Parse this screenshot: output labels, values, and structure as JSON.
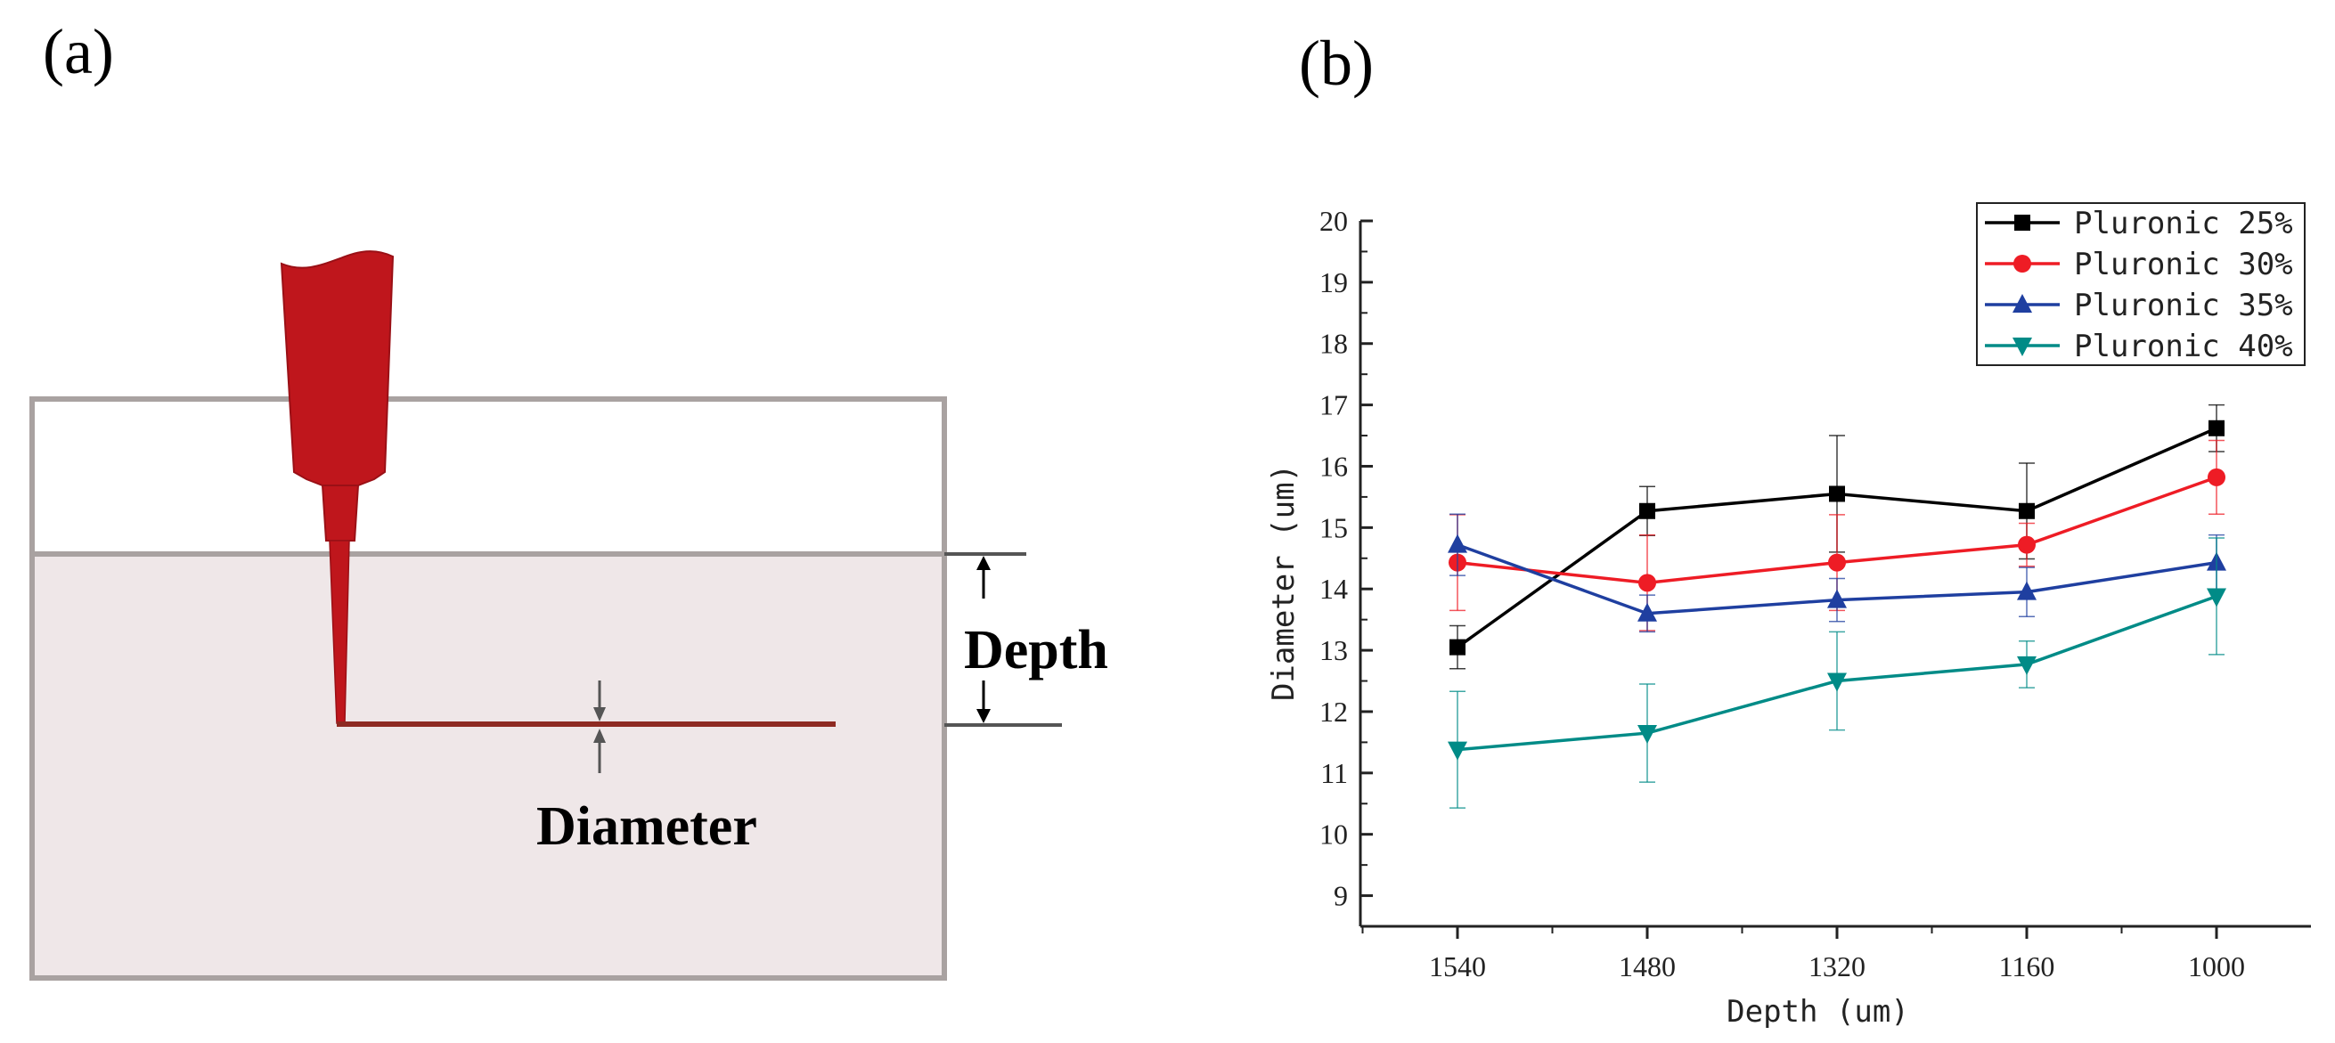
{
  "panels": {
    "a_label": "(a)",
    "b_label": "(b)"
  },
  "diagram": {
    "depth_label": "Depth",
    "diameter_label": "Diameter",
    "colors": {
      "nozzle": "#bf161c",
      "filament": "#8e2a22",
      "bath": "#efe7e8",
      "bath_border": "#a9a2a1",
      "dimension_line": "#555555"
    }
  },
  "chart_data": {
    "type": "line",
    "title": "",
    "xlabel": "Depth (um)",
    "ylabel": "Diameter (um)",
    "categories": [
      "1540",
      "1480",
      "1320",
      "1160",
      "1000"
    ],
    "ylim": [
      8.5,
      20
    ],
    "yticks": [
      9,
      10,
      11,
      12,
      13,
      14,
      15,
      16,
      17,
      18,
      19,
      20
    ],
    "legend_position": "top-right",
    "series": [
      {
        "name": "Pluronic 25%",
        "color": "#000000",
        "marker": "square",
        "values": [
          13.05,
          15.27,
          15.55,
          15.27,
          16.62
        ],
        "errors": [
          0.35,
          0.4,
          0.95,
          0.78,
          0.38
        ]
      },
      {
        "name": "Pluronic 30%",
        "color": "#ee1c25",
        "marker": "circle",
        "values": [
          14.43,
          14.1,
          14.43,
          14.72,
          15.82
        ],
        "errors": [
          0.78,
          0.78,
          0.78,
          0.35,
          0.6
        ]
      },
      {
        "name": "Pluronic 35%",
        "color": "#1f3fa0",
        "marker": "triangle-up",
        "values": [
          14.72,
          13.6,
          13.82,
          13.95,
          14.43
        ],
        "errors": [
          0.5,
          0.3,
          0.35,
          0.4,
          0.45
        ]
      },
      {
        "name": "Pluronic 40%",
        "color": "#008b87",
        "marker": "triangle-down",
        "values": [
          11.38,
          11.65,
          12.5,
          12.77,
          13.88
        ],
        "errors": [
          0.95,
          0.8,
          0.8,
          0.38,
          0.95
        ]
      }
    ]
  }
}
